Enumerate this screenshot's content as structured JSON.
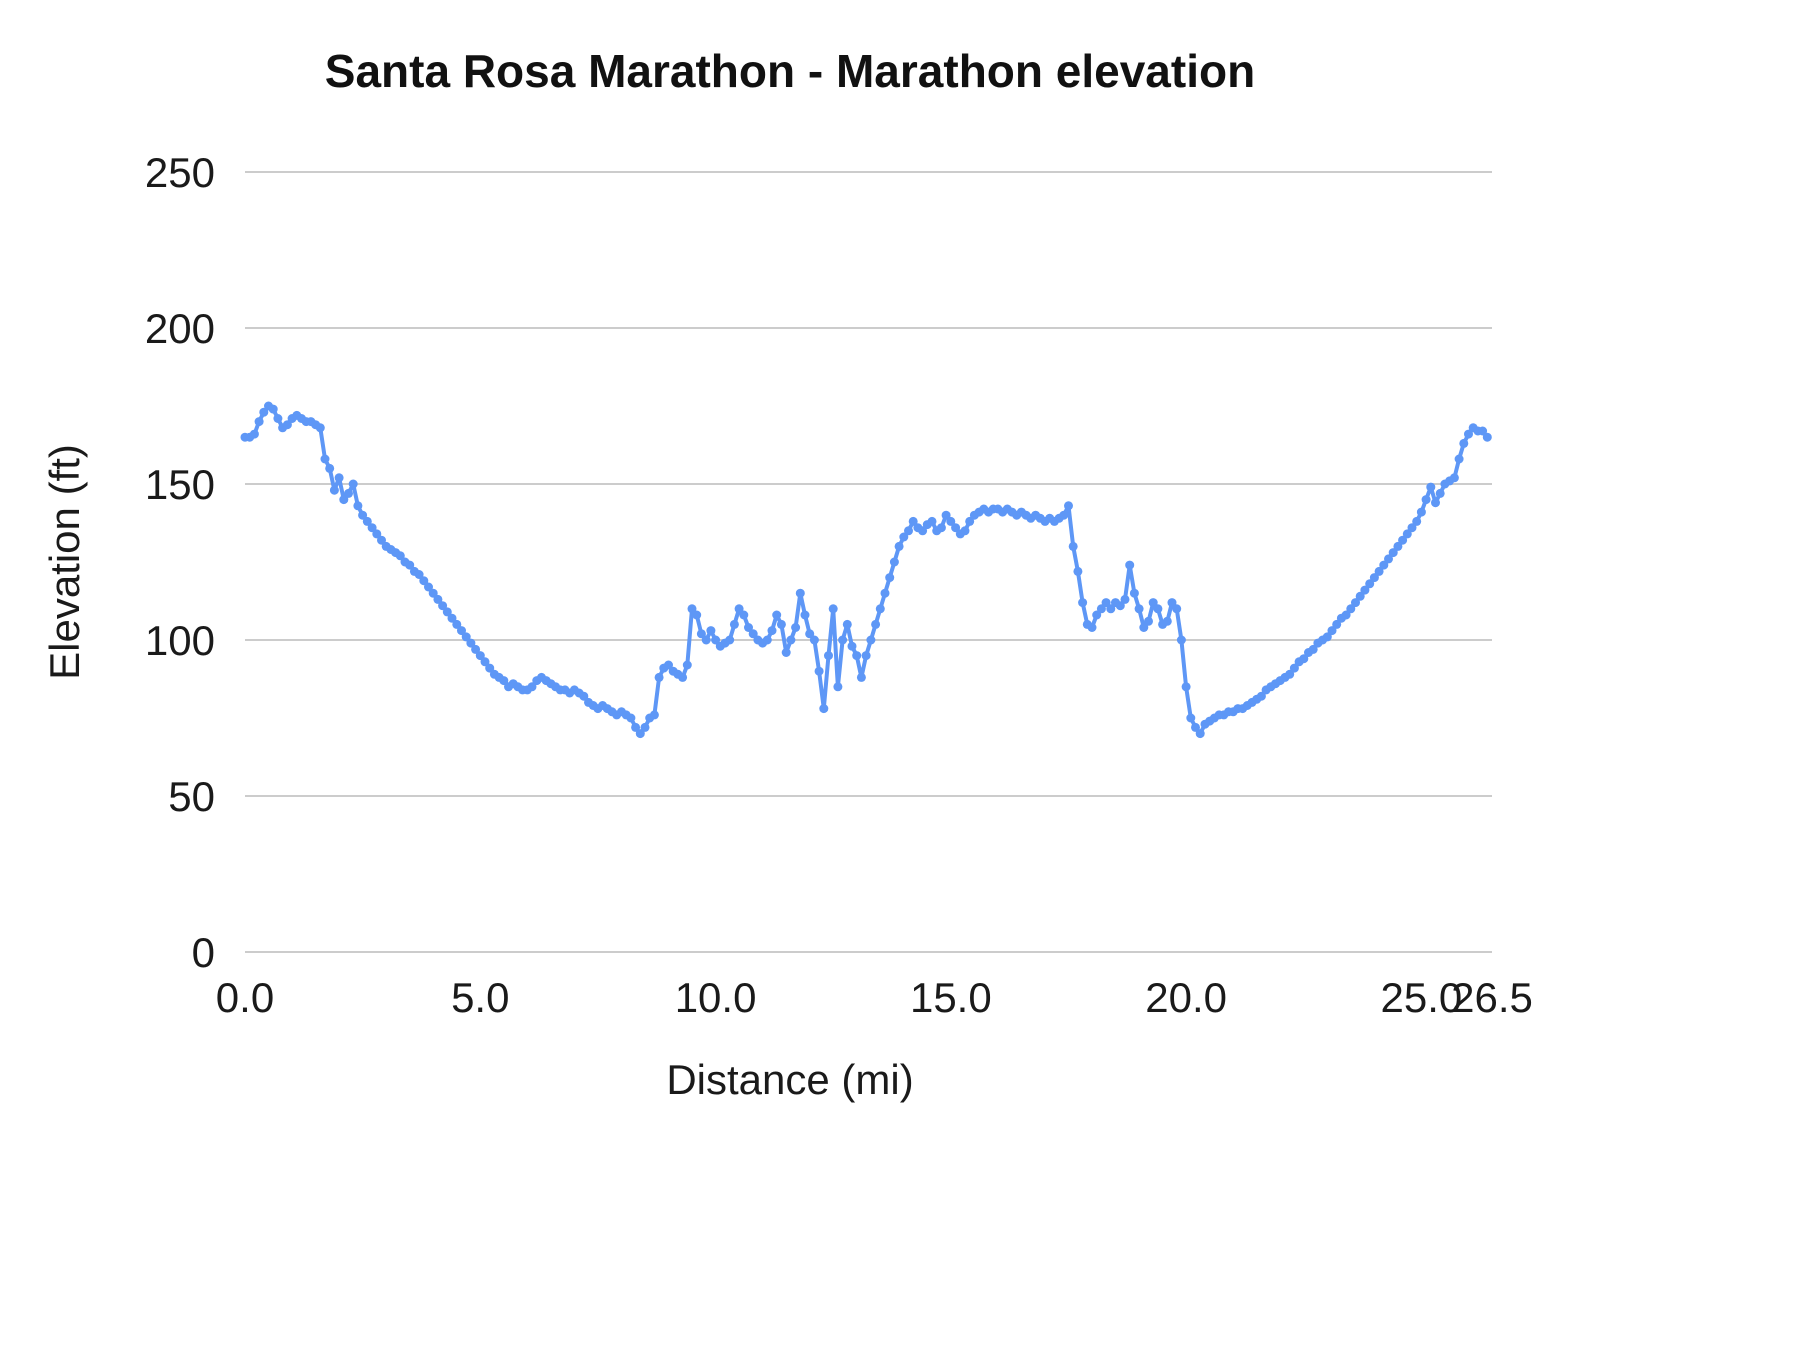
{
  "chart_data": {
    "type": "line",
    "title": "Santa Rosa Marathon - Marathon elevation",
    "xlabel": "Distance (mi)",
    "ylabel": "Elevation (ft)",
    "xlim": [
      0,
      26.5
    ],
    "ylim": [
      0,
      250
    ],
    "x_ticks": [
      0.0,
      5.0,
      10.0,
      15.0,
      20.0,
      25.0,
      26.5
    ],
    "x_tick_labels": [
      "0.0",
      "5.0",
      "10.0",
      "15.0",
      "20.0",
      "25.0",
      "26.5"
    ],
    "y_ticks": [
      0,
      50,
      100,
      150,
      200,
      250
    ],
    "grid": "horizontal",
    "legend": "none",
    "line_color": "#5e97f6",
    "grid_color": "#cccccc",
    "tick_color": "#1a1a1a",
    "point_markers": true,
    "series": [
      {
        "name": "Marathon elevation",
        "x_start": 0.0,
        "x_step": 0.1,
        "values": [
          165,
          165,
          166,
          170,
          173,
          175,
          174,
          171,
          168,
          169,
          171,
          172,
          171,
          170,
          170,
          169,
          168,
          158,
          155,
          148,
          152,
          145,
          147,
          150,
          143,
          140,
          138,
          136,
          134,
          132,
          130,
          129,
          128,
          127,
          125,
          124,
          122,
          121,
          119,
          117,
          115,
          113,
          111,
          109,
          107,
          105,
          103,
          101,
          99,
          97,
          95,
          93,
          91,
          89,
          88,
          87,
          85,
          86,
          85,
          84,
          84,
          85,
          87,
          88,
          87,
          86,
          85,
          84,
          84,
          83,
          84,
          83,
          82,
          80,
          79,
          78,
          79,
          78,
          77,
          76,
          77,
          76,
          75,
          72,
          70,
          72,
          75,
          76,
          88,
          91,
          92,
          90,
          89,
          88,
          92,
          110,
          108,
          102,
          100,
          103,
          100,
          98,
          99,
          100,
          105,
          110,
          108,
          104,
          102,
          100,
          99,
          100,
          103,
          108,
          105,
          96,
          100,
          104,
          115,
          108,
          102,
          100,
          90,
          78,
          95,
          110,
          85,
          100,
          105,
          98,
          95,
          88,
          95,
          100,
          105,
          110,
          115,
          120,
          125,
          130,
          133,
          135,
          138,
          136,
          135,
          137,
          138,
          135,
          136,
          140,
          138,
          136,
          134,
          135,
          138,
          140,
          141,
          142,
          141,
          142,
          142,
          141,
          142,
          141,
          140,
          141,
          140,
          139,
          140,
          139,
          138,
          139,
          138,
          139,
          140,
          143,
          130,
          122,
          112,
          105,
          104,
          108,
          110,
          112,
          110,
          112,
          111,
          113,
          124,
          115,
          110,
          104,
          106,
          112,
          110,
          105,
          106,
          112,
          110,
          100,
          85,
          75,
          72,
          70,
          73,
          74,
          75,
          76,
          76,
          77,
          77,
          78,
          78,
          79,
          80,
          81,
          82,
          84,
          85,
          86,
          87,
          88,
          89,
          91,
          93,
          94,
          96,
          97,
          99,
          100,
          101,
          103,
          105,
          107,
          108,
          110,
          112,
          114,
          116,
          118,
          120,
          122,
          124,
          126,
          128,
          130,
          132,
          134,
          136,
          138,
          141,
          145,
          149,
          144,
          147,
          150,
          151,
          152,
          158,
          163,
          166,
          168,
          167,
          167,
          165
        ]
      }
    ]
  }
}
